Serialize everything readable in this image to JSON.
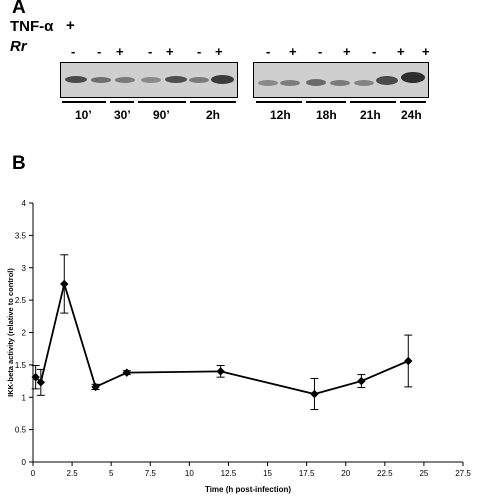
{
  "panel_a": {
    "letter": "A",
    "tnf_label": "TNF-α",
    "tnf_sign": "+",
    "rr_label": "Rr",
    "lane_signs_left": [
      "-",
      "-",
      "+",
      "-",
      "+",
      "-",
      "+"
    ],
    "lane_signs_right": [
      "-",
      "+",
      "-",
      "+",
      "-",
      "+",
      "+"
    ],
    "time_labels_left": [
      "10’",
      "30’",
      "90’",
      "2h"
    ],
    "time_labels_right": [
      "12h",
      "18h",
      "21h",
      "24h"
    ]
  },
  "panel_b": {
    "letter": "B"
  },
  "chart_data": {
    "type": "line",
    "xlabel": "Time (h post-infection)",
    "ylabel": "IKK-beta activity (relative to control)",
    "xlim": [
      0,
      27.5
    ],
    "ylim": [
      0,
      4
    ],
    "x_ticks": [
      "0",
      "2.5",
      "5",
      "7.5",
      "10",
      "12.5",
      "15",
      "17.5",
      "20",
      "22.5",
      "25",
      "27.5"
    ],
    "y_ticks": [
      "0",
      "0.5",
      "1",
      "1.5",
      "2",
      "2.5",
      "3",
      "3.5",
      "4"
    ],
    "marker": "diamond",
    "color": "#000000",
    "grid": false,
    "legend": "none",
    "series": [
      {
        "x": [
          0.17,
          0.5,
          2,
          4,
          6,
          12,
          18,
          21,
          24
        ],
        "y": [
          1.31,
          1.23,
          2.75,
          1.16,
          1.38,
          1.4,
          1.05,
          1.25,
          1.56
        ],
        "err": [
          0.18,
          0.2,
          0.45,
          0.04,
          0.03,
          0.09,
          0.24,
          0.1,
          0.4
        ]
      }
    ]
  }
}
